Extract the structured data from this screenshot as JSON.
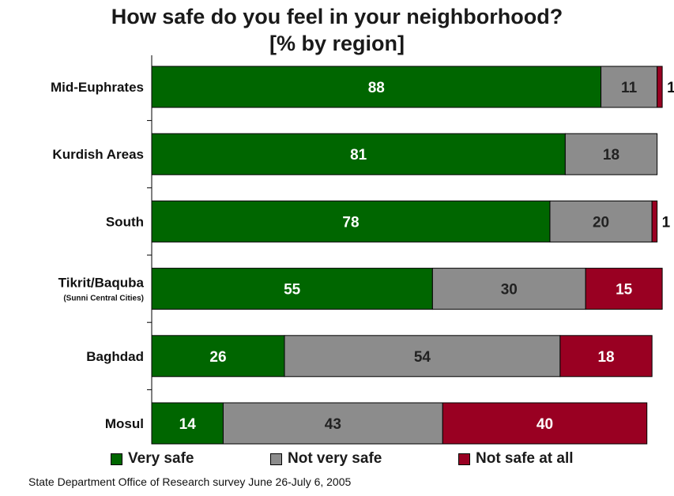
{
  "chart_data": {
    "type": "bar",
    "orientation": "horizontal",
    "stacked": true,
    "title": "How safe do you feel in your neighborhood?",
    "subtitle": "[% by region]",
    "categories": [
      {
        "label": "Mid-Euphrates",
        "sublabel": ""
      },
      {
        "label": "Kurdish Areas",
        "sublabel": ""
      },
      {
        "label": "South",
        "sublabel": ""
      },
      {
        "label": "Tikrit/Baquba",
        "sublabel": "(Sunni Central Cities)"
      },
      {
        "label": "Baghdad",
        "sublabel": ""
      },
      {
        "label": "Mosul",
        "sublabel": ""
      }
    ],
    "series": [
      {
        "name": "Very safe",
        "color": "#006600",
        "label_color": "#ffffff",
        "values": [
          88,
          81,
          78,
          55,
          26,
          14
        ]
      },
      {
        "name": "Not very safe",
        "color": "#8c8c8c",
        "label_color": "#222222",
        "values": [
          11,
          18,
          20,
          30,
          54,
          43
        ]
      },
      {
        "name": "Not safe at all",
        "color": "#990022",
        "label_color": "#ffffff",
        "values": [
          1,
          0,
          1,
          15,
          18,
          40
        ]
      }
    ],
    "xlim": [
      0,
      100
    ],
    "grid": false,
    "legend_position": "bottom"
  },
  "source": "State Department Office of Research survey June 26-July 6, 2005"
}
